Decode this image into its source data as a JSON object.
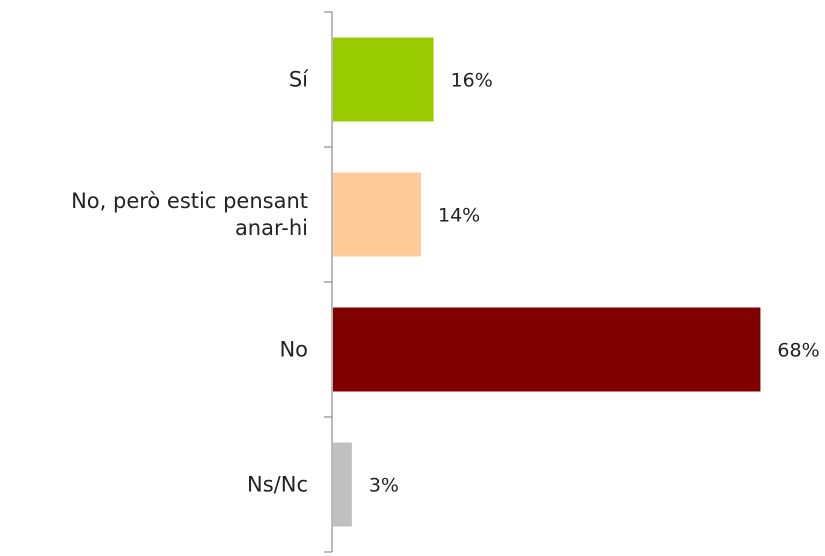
{
  "chart_data": {
    "type": "bar",
    "orientation": "horizontal",
    "categories": [
      [
        "Sí"
      ],
      [
        "No, però estic pensant",
        "anar-hi"
      ],
      [
        "No"
      ],
      [
        "Ns/Nc"
      ]
    ],
    "values": [
      16,
      14,
      68,
      3
    ],
    "value_labels": [
      "16%",
      "14%",
      "68%",
      "3%"
    ],
    "colors": [
      "#99cc00",
      "#ffcc99",
      "#800000",
      "#c0c0c0"
    ],
    "xlim": [
      0,
      70
    ],
    "grid": false,
    "legend": "none"
  }
}
